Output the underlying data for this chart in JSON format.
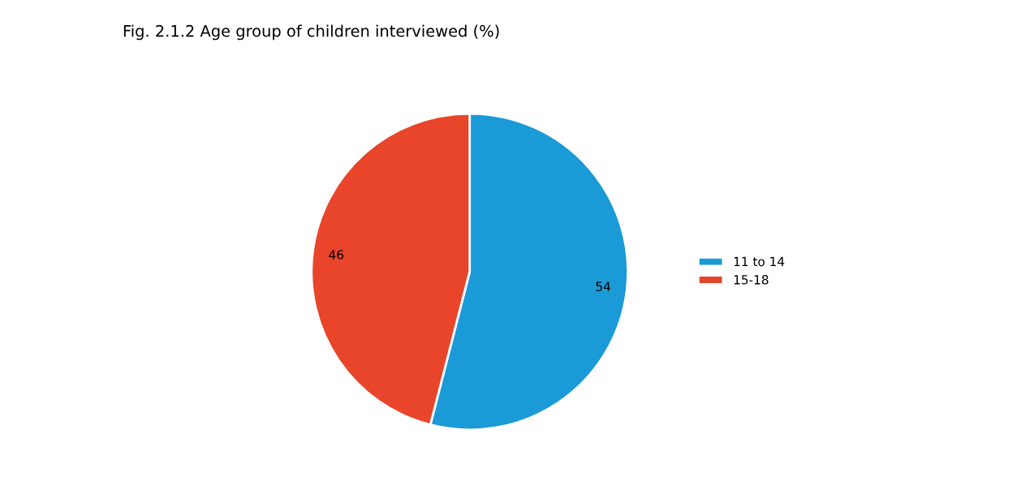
{
  "chart_data": {
    "type": "pie",
    "title": "Fig. 2.1.2 Age group of children interviewed (%)",
    "categories": [
      "11 to 14",
      "15-18"
    ],
    "values": [
      54,
      46
    ],
    "colors": [
      "#1a9ad6",
      "#e8452a"
    ],
    "data_labels": true,
    "legend": "right"
  }
}
